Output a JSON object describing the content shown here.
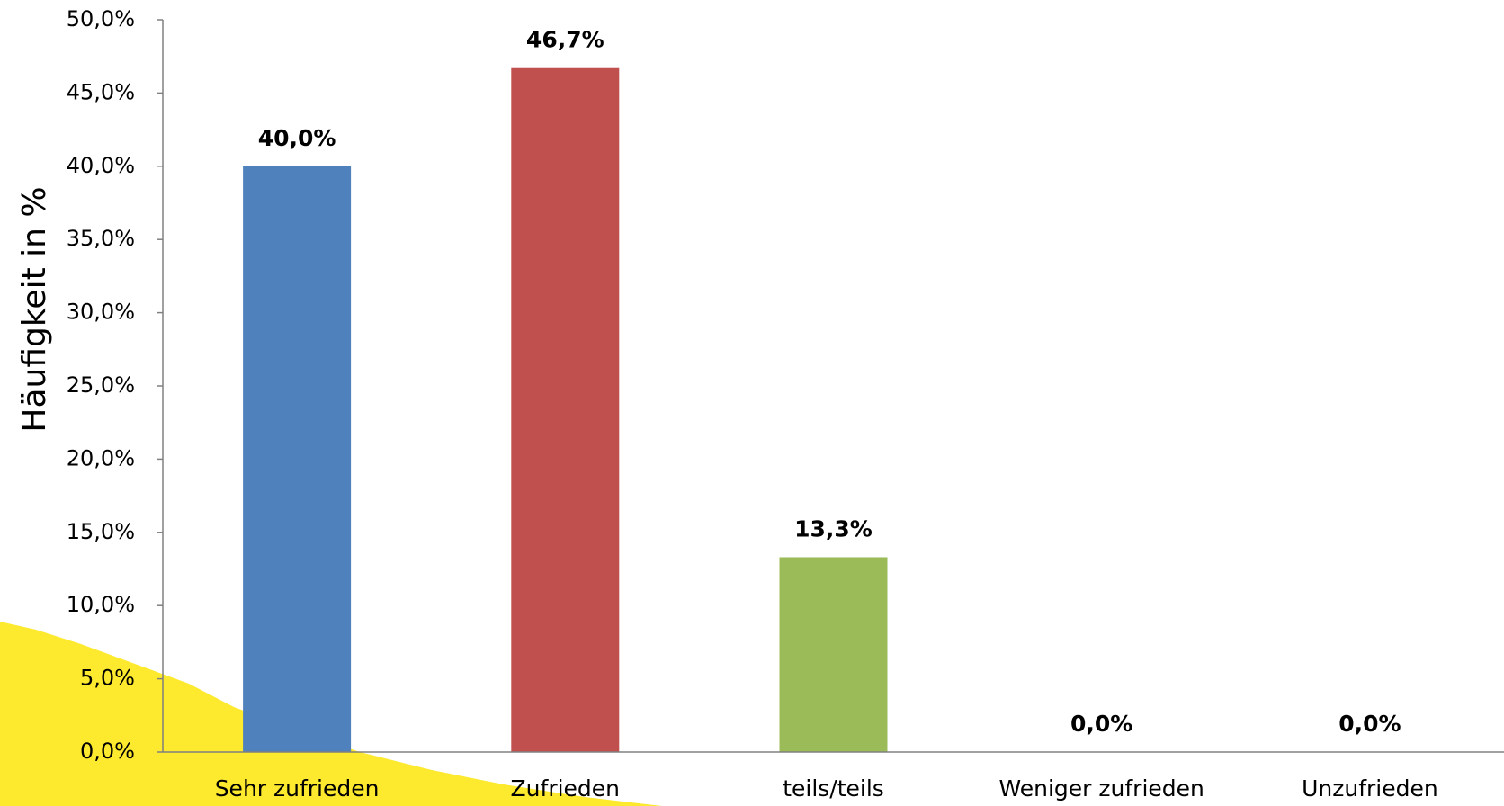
{
  "chart_data": {
    "type": "bar",
    "y_label": "Häufigkeit in %",
    "categories": [
      "Sehr zufrieden",
      "Zufrieden",
      "teils/teils",
      "Weniger zufrieden",
      "Unzufrieden"
    ],
    "values": [
      40.0,
      46.7,
      13.3,
      0.0,
      0.0
    ],
    "value_labels": [
      "40,0%",
      "46,7%",
      "13,3%",
      "0,0%",
      "0,0%"
    ],
    "colors": [
      "#4f81bd",
      "#c0504d",
      "#9bbb59",
      "#8064a2",
      "#4bacc6"
    ],
    "ylim": [
      0,
      50
    ],
    "yticks": [
      {
        "value": 0,
        "label": "0,0%"
      },
      {
        "value": 5,
        "label": "5,0%"
      },
      {
        "value": 10,
        "label": "10,0%"
      },
      {
        "value": 15,
        "label": "15,0%"
      },
      {
        "value": 20,
        "label": "20,0%"
      },
      {
        "value": 25,
        "label": "25,0%"
      },
      {
        "value": 30,
        "label": "30,0%"
      },
      {
        "value": 35,
        "label": "35,0%"
      },
      {
        "value": 40,
        "label": "40,0%"
      },
      {
        "value": 45,
        "label": "45,0%"
      },
      {
        "value": 50,
        "label": "50,0%"
      }
    ],
    "grid": false
  }
}
